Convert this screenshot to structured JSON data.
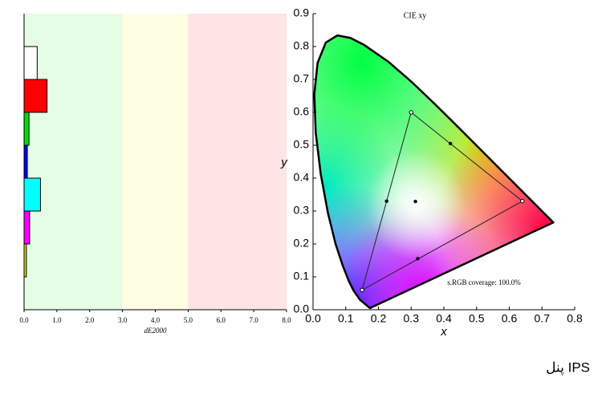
{
  "chart_data": [
    {
      "type": "bar",
      "orientation": "horizontal",
      "categories": [
        null,
        null,
        null,
        null,
        null,
        null,
        null
      ],
      "values": [
        0.4,
        0.7,
        0.15,
        0.1,
        0.5,
        0.17,
        0.07
      ],
      "colors": [
        "#ffffff",
        "#ff0000",
        "#00dd00",
        "#0000ff",
        "#00ffff",
        "#ff00ff",
        "#dddd00"
      ],
      "xlabel": "dE2000",
      "xlim": [
        0,
        8
      ],
      "xticks": [
        {
          "value": 0,
          "label": "0.0"
        },
        {
          "value": 1,
          "label": "1.0"
        },
        {
          "value": 2,
          "label": "2.0"
        },
        {
          "value": 3,
          "label": "3.0"
        },
        {
          "value": 4,
          "label": "4.0"
        },
        {
          "value": 5,
          "label": "5.0"
        },
        {
          "value": 6,
          "label": "6.0"
        },
        {
          "value": 7,
          "label": "7.0"
        },
        {
          "value": 8,
          "label": "8.0"
        }
      ],
      "bands": [
        {
          "from": 0,
          "to": 3,
          "color": "#e4fde4"
        },
        {
          "from": 3,
          "to": 5,
          "color": "#fefee2"
        },
        {
          "from": 5,
          "to": 8,
          "color": "#fee4e4"
        }
      ]
    },
    {
      "type": "cie",
      "title": "CIE xy",
      "xlabel": "x",
      "ylabel": "y",
      "xlim": [
        0,
        0.8
      ],
      "ylim": [
        0,
        0.9
      ],
      "xticks": [
        {
          "value": 0,
          "label": "0.0"
        },
        0.1,
        0.2,
        0.3,
        0.4,
        0.5,
        0.6,
        0.7,
        0.8
      ],
      "yticks": [
        {
          "value": 0,
          "label": "0.0"
        },
        0.1,
        0.2,
        0.3,
        0.4,
        0.5,
        0.6,
        0.7,
        0.8,
        0.9
      ],
      "locus": {
        "x": [
          0.1741,
          0.144,
          0.1241,
          0.1096,
          0.0913,
          0.0687,
          0.0454,
          0.0235,
          0.0082,
          0.0039,
          0.0139,
          0.0389,
          0.0743,
          0.1142,
          0.1547,
          0.2296,
          0.3016,
          0.3731,
          0.4441,
          0.5125,
          0.5752,
          0.627,
          0.6915,
          0.7347
        ],
        "y": [
          0.005,
          0.0297,
          0.0578,
          0.0868,
          0.1327,
          0.2007,
          0.295,
          0.4127,
          0.5384,
          0.6548,
          0.7502,
          0.812,
          0.8338,
          0.8262,
          0.8059,
          0.7543,
          0.6923,
          0.6245,
          0.5547,
          0.4866,
          0.4242,
          0.3725,
          0.3083,
          0.2653
        ]
      },
      "gamut": {
        "x": [
          0.64,
          0.3,
          0.15
        ],
        "y": [
          0.33,
          0.6,
          0.06
        ]
      },
      "points": {
        "x": [
          0.42,
          0.225,
          0.32,
          0.313
        ],
        "y": [
          0.505,
          0.33,
          0.155,
          0.329
        ]
      },
      "annotation": "s.RGB coverage: 100.0%"
    }
  ],
  "caption": "پنل IPS"
}
